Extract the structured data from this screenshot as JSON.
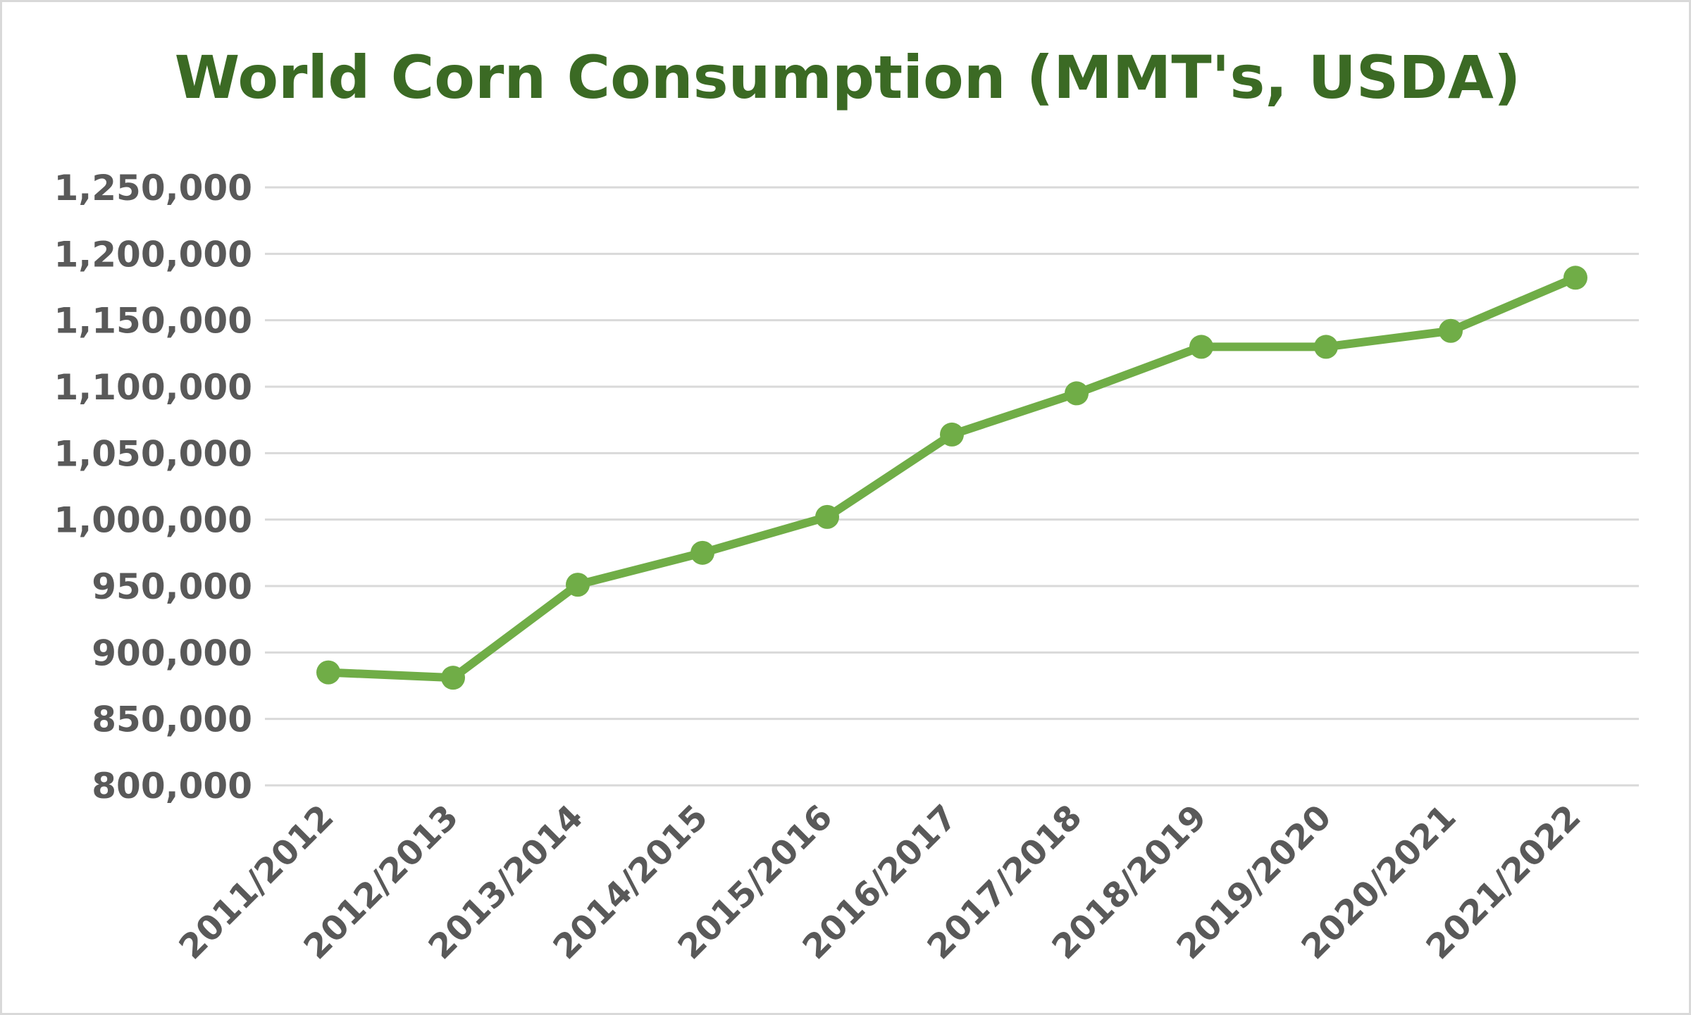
{
  "chart_data": {
    "type": "line",
    "title": "World Corn Consumption (MMT's, USDA)",
    "xlabel": "",
    "ylabel": "",
    "categories": [
      "2011/2012",
      "2012/2013",
      "2013/2014",
      "2014/2015",
      "2015/2016",
      "2016/2017",
      "2017/2018",
      "2018/2019",
      "2019/2020",
      "2020/2021",
      "2021/2022"
    ],
    "series": [
      {
        "values": [
          885000,
          881000,
          951000,
          975000,
          1002000,
          1064000,
          1095000,
          1130000,
          1130000,
          1142000,
          1182000
        ]
      }
    ],
    "ylim": [
      800000,
      1250000
    ],
    "yticks": [
      "800,000",
      "850,000",
      "900,000",
      "950,000",
      "1,000,000",
      "1,050,000",
      "1,100,000",
      "1,150,000",
      "1,200,000",
      "1,250,000"
    ],
    "ytick_values": [
      800000,
      850000,
      900000,
      950000,
      1000000,
      1050000,
      1100000,
      1150000,
      1200000,
      1250000
    ],
    "grid": true,
    "legend": "none",
    "colors": {
      "line": "#70ad47",
      "title": "#3b6a24",
      "tick": "#595959",
      "grid": "#d9d9d9"
    }
  }
}
